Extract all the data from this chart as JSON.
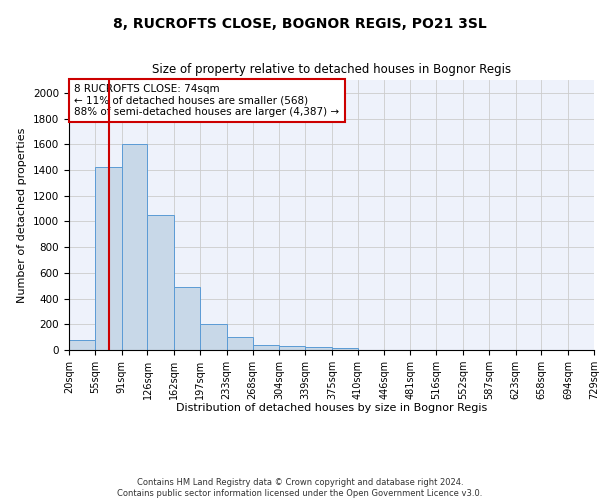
{
  "title": "8, RUCROFTS CLOSE, BOGNOR REGIS, PO21 3SL",
  "subtitle": "Size of property relative to detached houses in Bognor Regis",
  "xlabel": "Distribution of detached houses by size in Bognor Regis",
  "ylabel": "Number of detached properties",
  "bins": [
    20,
    55,
    91,
    126,
    162,
    197,
    233,
    268,
    304,
    339,
    375,
    410,
    446,
    481,
    516,
    552,
    587,
    623,
    658,
    694,
    729
  ],
  "counts": [
    80,
    1420,
    1600,
    1050,
    490,
    205,
    105,
    40,
    28,
    22,
    18,
    0,
    0,
    0,
    0,
    0,
    0,
    0,
    0,
    0
  ],
  "bar_color": "#c8d8e8",
  "bar_edge_color": "#5b9bd5",
  "vline_x": 74,
  "vline_color": "#cc0000",
  "ylim": [
    0,
    2100
  ],
  "yticks": [
    0,
    200,
    400,
    600,
    800,
    1000,
    1200,
    1400,
    1600,
    1800,
    2000
  ],
  "grid_color": "#cccccc",
  "background_color": "#eef2fb",
  "annotation_text": "8 RUCROFTS CLOSE: 74sqm\n← 11% of detached houses are smaller (568)\n88% of semi-detached houses are larger (4,387) →",
  "annotation_box_color": "#ffffff",
  "annotation_box_edge": "#cc0000",
  "footer": "Contains HM Land Registry data © Crown copyright and database right 2024.\nContains public sector information licensed under the Open Government Licence v3.0.",
  "tick_labels": [
    "20sqm",
    "55sqm",
    "91sqm",
    "126sqm",
    "162sqm",
    "197sqm",
    "233sqm",
    "268sqm",
    "304sqm",
    "339sqm",
    "375sqm",
    "410sqm",
    "446sqm",
    "481sqm",
    "516sqm",
    "552sqm",
    "587sqm",
    "623sqm",
    "658sqm",
    "694sqm",
    "729sqm"
  ]
}
